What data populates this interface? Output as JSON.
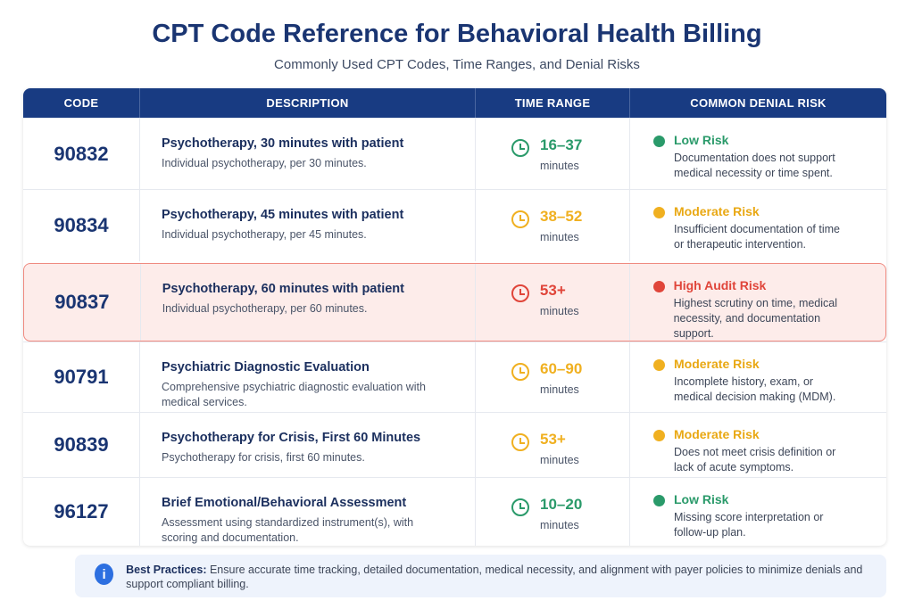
{
  "title": "CPT Code Reference for Behavioral Health Billing",
  "subtitle": "Commonly Used CPT Codes, Time Ranges, and Denial Risks",
  "headers": [
    "CODE",
    "DESCRIPTION",
    "TIME RANGE",
    "COMMON DENIAL RISK"
  ],
  "colors": {
    "header": "#183b82",
    "low": "#2a9a6a",
    "moderate": "#f0b020",
    "high": "#e0453a",
    "highlight_bg": "#fdecea"
  },
  "rows": [
    {
      "code": "90832",
      "title": "Psychotherapy, 30 minutes with patient",
      "desc": "Individual psychotherapy, per 30 minutes.",
      "time": "16–37",
      "unit": "minutes",
      "level": "low",
      "risk": "Low Risk",
      "risk_desc": "Documentation does not support medical necessity or time spent."
    },
    {
      "code": "90834",
      "title": "Psychotherapy, 45 minutes with patient",
      "desc": "Individual psychotherapy, per 45 minutes.",
      "time": "38–52",
      "unit": "minutes",
      "level": "moderate",
      "risk": "Moderate Risk",
      "risk_desc": "Insufficient documentation of time or therapeutic intervention."
    },
    {
      "code": "90837",
      "title": "Psychotherapy, 60 minutes with patient",
      "desc": "Individual psychotherapy, per 60 minutes.",
      "time": "53+",
      "unit": "minutes",
      "level": "high",
      "risk": "High Audit Risk",
      "risk_desc": "Highest scrutiny on time, medical necessity, and documentation support."
    },
    {
      "code": "90791",
      "title": "Psychiatric Diagnostic Evaluation",
      "desc": "Comprehensive psychiatric diagnostic evaluation with medical services.",
      "time": "60–90",
      "unit": "minutes",
      "level": "moderate",
      "risk": "Moderate Risk",
      "risk_desc": "Incomplete history, exam, or medical decision making (MDM)."
    },
    {
      "code": "90839",
      "title": "Psychotherapy for Crisis, First 60 Minutes",
      "desc": "Psychotherapy for crisis, first 60 minutes.",
      "time": "53+",
      "unit": "minutes",
      "level": "moderate",
      "risk": "Moderate Risk",
      "risk_desc": "Does not meet crisis definition or lack of acute symptoms."
    },
    {
      "code": "96127",
      "title": "Brief Emotional/Behavioral Assessment",
      "desc": "Assessment using standardized instrument(s), with scoring and documentation.",
      "time": "10–20",
      "unit": "minutes",
      "level": "low",
      "risk": "Low Risk",
      "risk_desc": "Missing score interpretation or follow-up plan."
    }
  ],
  "note": {
    "label": "Best Practices:",
    "text": "Ensure accurate time tracking, detailed documentation, medical necessity, and alignment with payer policies to minimize denials and support compliant billing.",
    "icon": "info-icon"
  }
}
